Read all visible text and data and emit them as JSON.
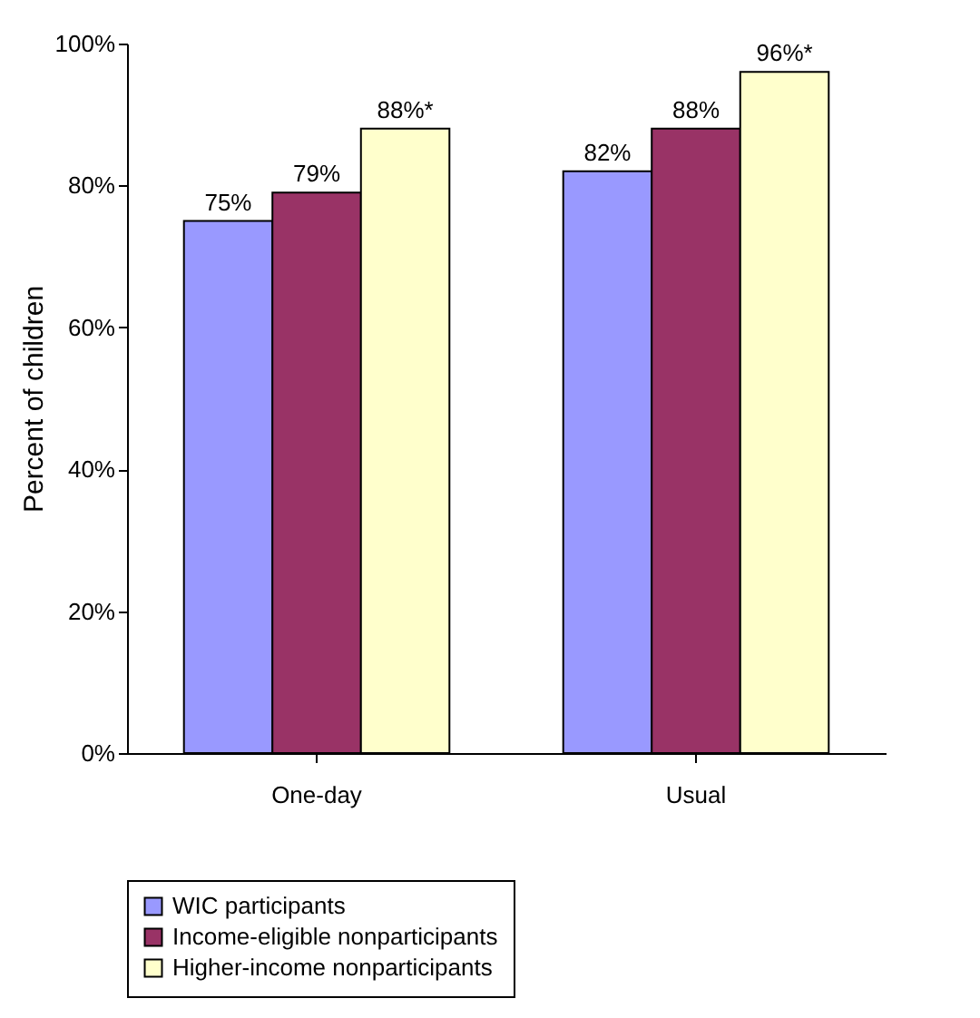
{
  "chart_data": {
    "type": "bar",
    "ylabel": "Percent of children",
    "categories": [
      "One-day",
      "Usual"
    ],
    "ylim": [
      0,
      100
    ],
    "yticks": [
      {
        "value": 0,
        "label": "0%"
      },
      {
        "value": 20,
        "label": "20%"
      },
      {
        "value": 40,
        "label": "40%"
      },
      {
        "value": 60,
        "label": "60%"
      },
      {
        "value": 80,
        "label": "80%"
      },
      {
        "value": 100,
        "label": "100%"
      }
    ],
    "series": [
      {
        "name": "WIC participants",
        "color": "#9999ff",
        "values": [
          75,
          82
        ],
        "value_labels": [
          "75%",
          "82%"
        ]
      },
      {
        "name": "Income-eligible nonparticipants",
        "color": "#993366",
        "values": [
          79,
          88
        ],
        "value_labels": [
          "79%",
          "88%"
        ]
      },
      {
        "name": "Higher-income nonparticipants",
        "color": "#ffffcc",
        "values": [
          88,
          96
        ],
        "value_labels": [
          "88%*",
          "96%*"
        ]
      }
    ],
    "legend": "bottom",
    "grid": false
  }
}
